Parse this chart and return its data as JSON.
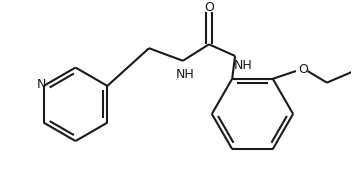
{
  "bg_color": "#ffffff",
  "line_color": "#1a1a1a",
  "line_width": 1.5,
  "figsize": [
    3.57,
    1.92
  ],
  "dpi": 100,
  "xlim": [
    0,
    357
  ],
  "ylim": [
    0,
    192
  ]
}
